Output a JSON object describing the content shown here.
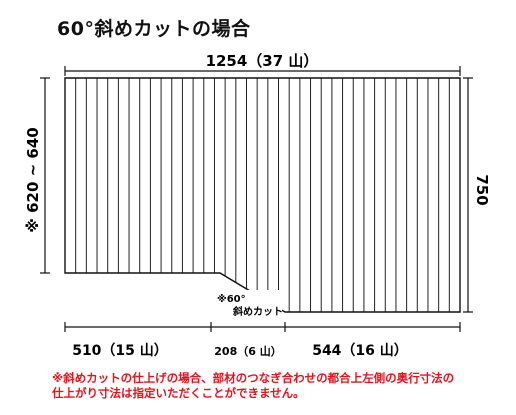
{
  "title": "60°斜めカットの場合",
  "dimensions": {
    "top_total": "1254（37 山）",
    "right_height": "750",
    "left_height": "※ 620 ~ 640",
    "bottom_left": "510（15 山）",
    "bottom_mid": "208（6 山）",
    "bottom_right": "544（16 山）"
  },
  "cut_label": {
    "line1": "※60°",
    "line2": "斜めカット"
  },
  "note": {
    "line1": "※斜めカットの仕上げの場合、部材のつなぎ合わせの都合上左側の奥行寸法の",
    "line2": "仕上がり寸法は指定いただくことができません。"
  },
  "panel": {
    "total_ridges": 37,
    "left_ridges": 15,
    "mid_ridges": 6,
    "right_ridges": 16
  }
}
